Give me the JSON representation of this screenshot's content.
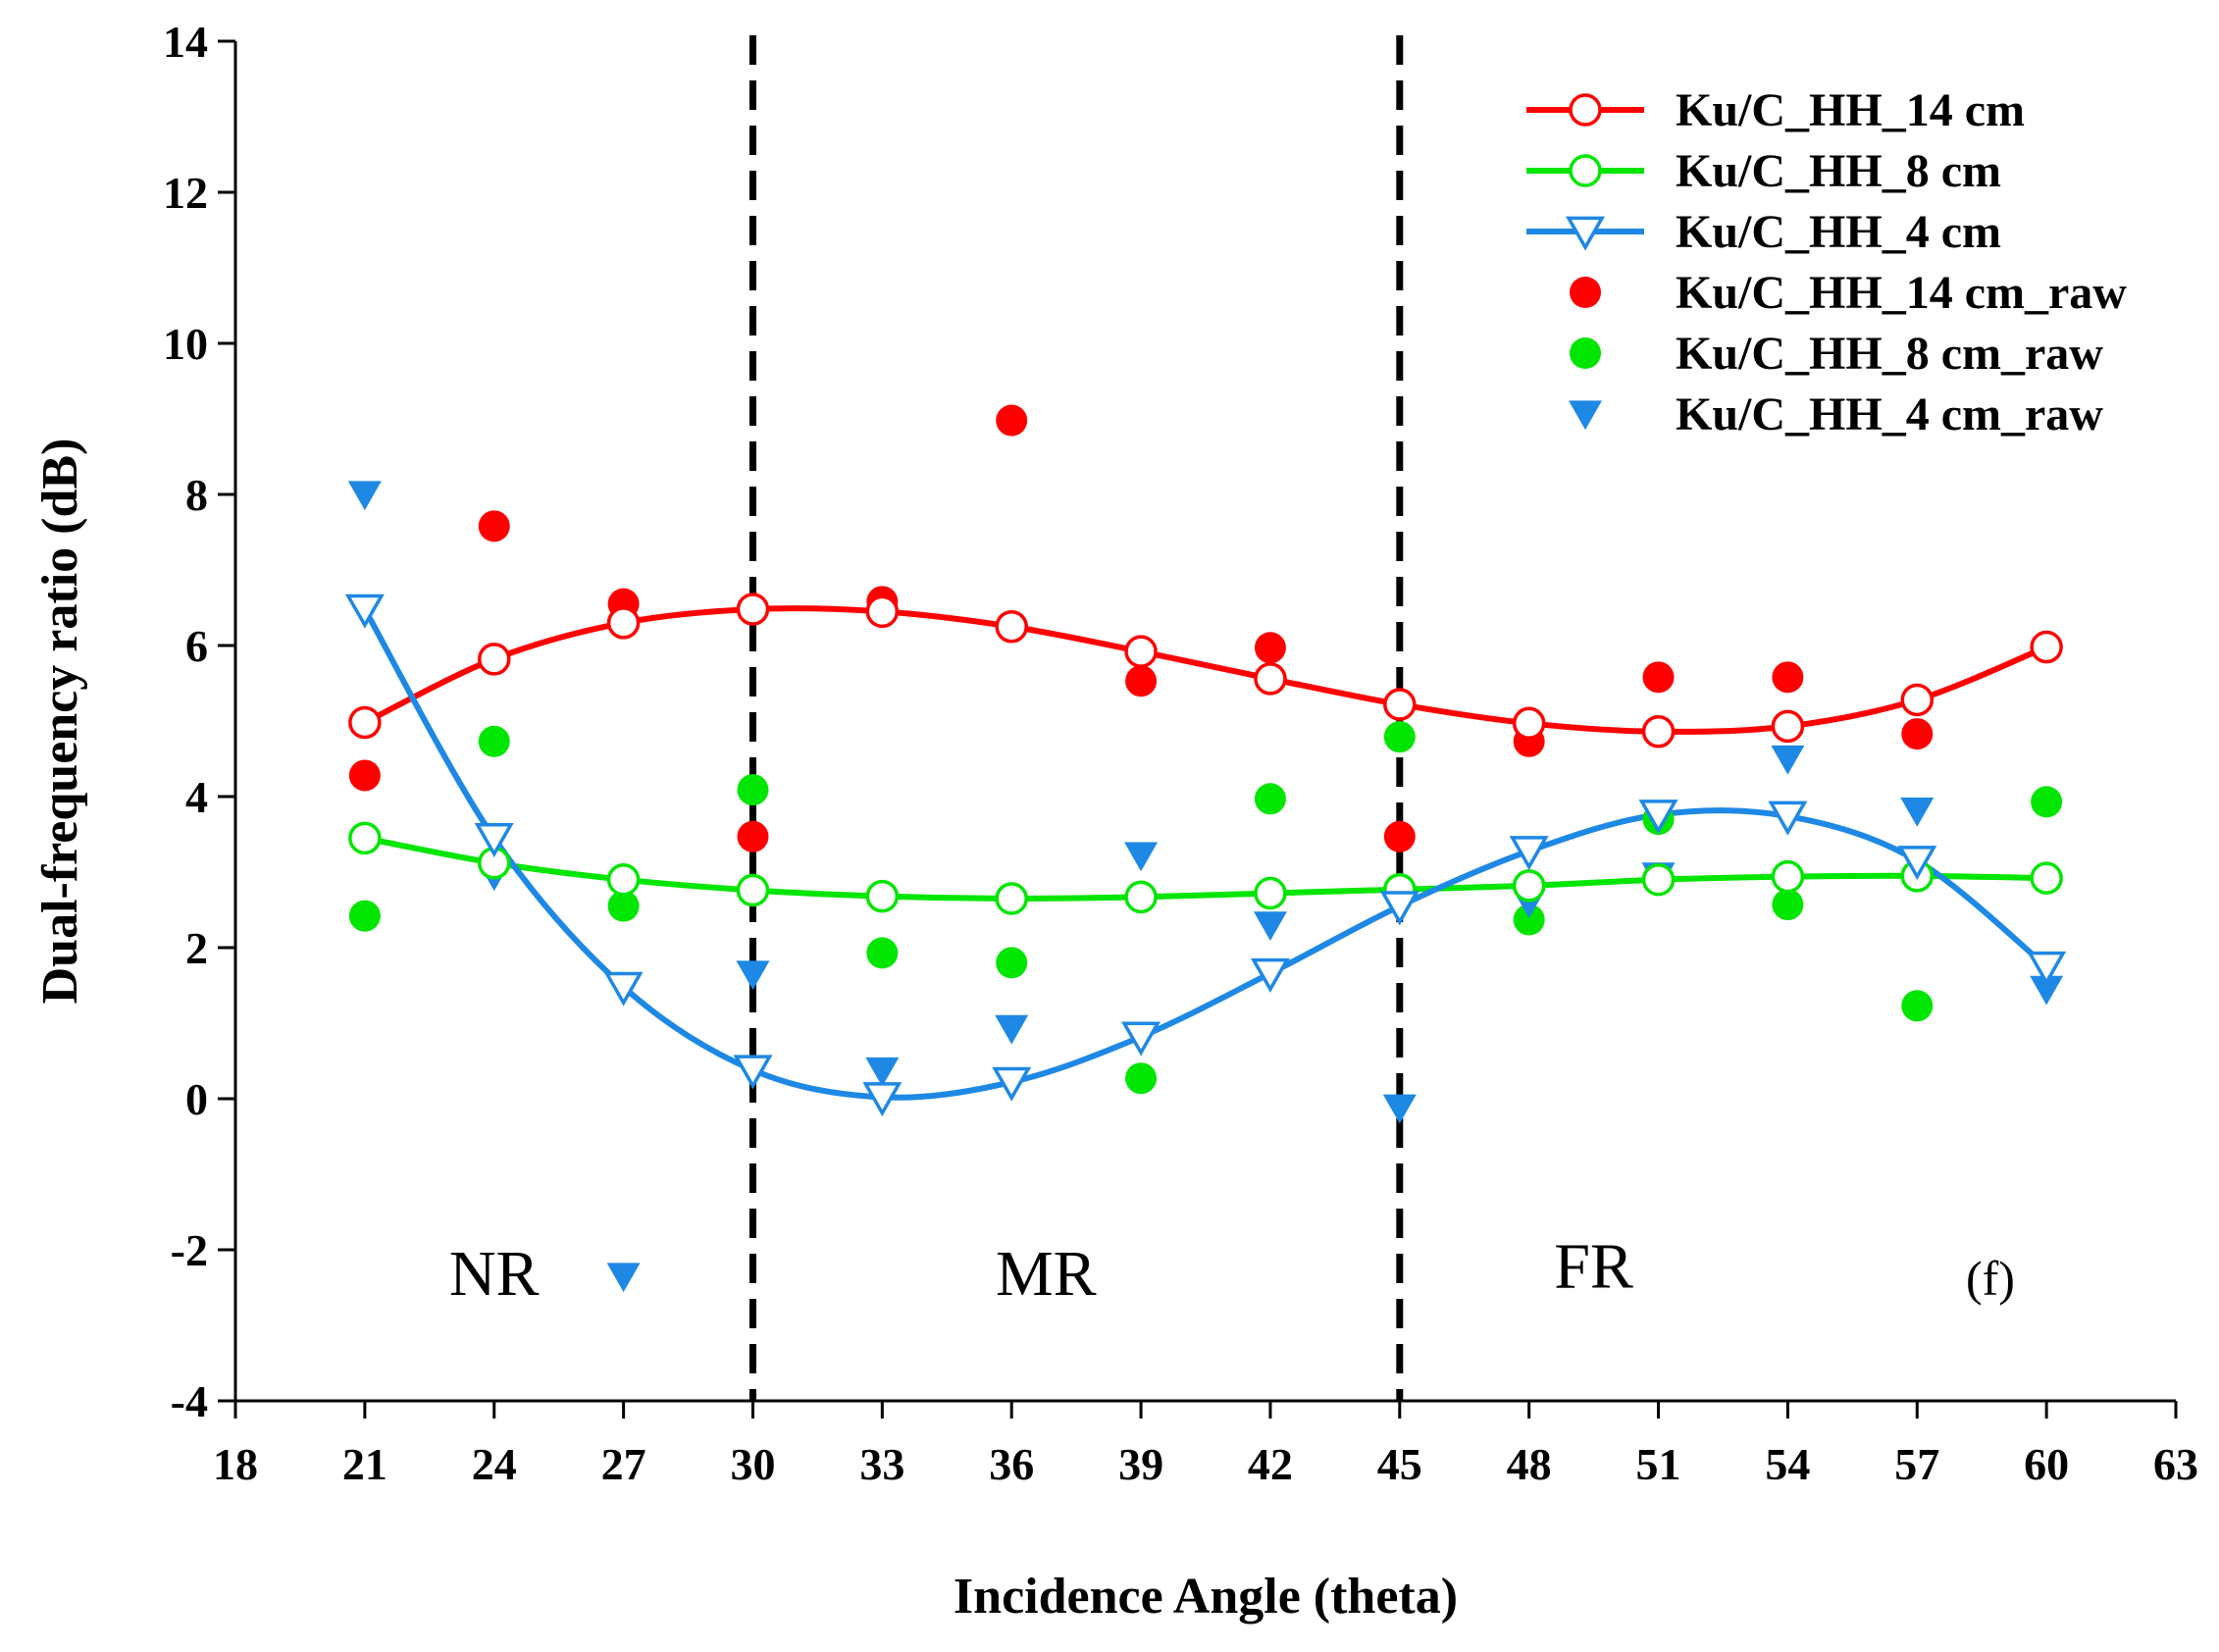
{
  "chart_data": {
    "type": "scatter",
    "xlabel": "Incidence Angle (theta)",
    "ylabel": "Dual-frequency ratio (dB)",
    "xlim": [
      18,
      63
    ],
    "ylim": [
      -4,
      14
    ],
    "xticks": [
      18,
      21,
      24,
      27,
      30,
      33,
      36,
      39,
      42,
      45,
      48,
      51,
      54,
      57,
      60,
      63
    ],
    "yticks": [
      -4,
      -2,
      0,
      2,
      4,
      6,
      8,
      10,
      12,
      14
    ],
    "grid": false,
    "legend_position": "top-right",
    "dividers": [
      30,
      45
    ],
    "region_labels": [
      {
        "text": "NR",
        "x": 24,
        "y": -2.6
      },
      {
        "text": "MR",
        "x": 36.8,
        "y": -2.6
      },
      {
        "text": "FR",
        "x": 49.5,
        "y": -2.5
      }
    ],
    "panel_label": {
      "text": "(f)",
      "x": 58.7,
      "y": -2.6
    },
    "x": [
      21,
      24,
      27,
      30,
      33,
      36,
      39,
      42,
      45,
      48,
      51,
      54,
      57,
      60
    ],
    "series": [
      {
        "name": "Ku/C_HH_14 cm",
        "style": "line",
        "marker": "circle-open",
        "color": "#ff0000",
        "values": [
          4.98,
          5.82,
          6.3,
          6.48,
          6.45,
          6.25,
          5.92,
          5.56,
          5.22,
          4.97,
          4.86,
          4.93,
          5.28,
          5.98
        ]
      },
      {
        "name": "Ku/C_HH_8 cm",
        "style": "line",
        "marker": "circle-open",
        "color": "#00e600",
        "values": [
          3.45,
          3.12,
          2.9,
          2.76,
          2.68,
          2.65,
          2.67,
          2.72,
          2.77,
          2.82,
          2.9,
          2.94,
          2.95,
          2.92
        ]
      },
      {
        "name": "Ku/C_HH_4 cm",
        "style": "line",
        "marker": "triangle-open",
        "color": "#1e88e5",
        "values": [
          6.48,
          3.45,
          1.48,
          0.38,
          0.02,
          0.22,
          0.82,
          1.66,
          2.55,
          3.28,
          3.76,
          3.74,
          3.15,
          1.75
        ]
      },
      {
        "name": "Ku/C_HH_14 cm_raw",
        "style": "points",
        "marker": "circle-filled",
        "color": "#ff0000",
        "values": [
          4.28,
          7.58,
          6.55,
          3.47,
          6.58,
          8.98,
          5.53,
          5.97,
          3.47,
          4.73,
          5.58,
          5.58,
          4.83,
          5.97
        ]
      },
      {
        "name": "Ku/C_HH_8 cm_raw",
        "style": "points",
        "marker": "circle-filled",
        "color": "#00e600",
        "values": [
          2.42,
          4.73,
          2.55,
          4.09,
          1.93,
          1.8,
          0.27,
          3.97,
          4.79,
          2.37,
          3.7,
          2.57,
          1.23,
          3.93
        ]
      },
      {
        "name": "Ku/C_HH_4 cm_raw",
        "style": "points",
        "marker": "triangle-filled",
        "color": "#1e88e5",
        "values": [
          8.0,
          2.96,
          -2.35,
          1.65,
          0.37,
          0.93,
          3.22,
          2.3,
          -0.12,
          2.6,
          2.95,
          4.5,
          3.81,
          1.45
        ]
      }
    ]
  }
}
